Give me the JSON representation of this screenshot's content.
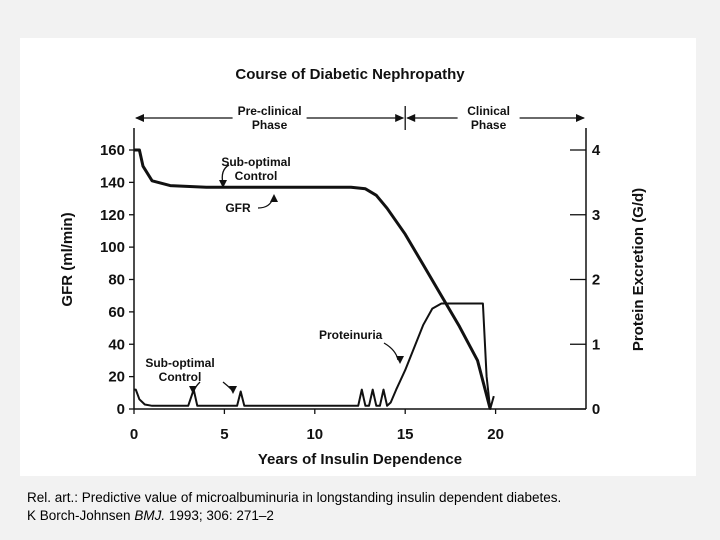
{
  "chart_data": {
    "type": "line",
    "title": "Course of Diabetic Nephropathy",
    "xlabel": "Years of Insulin Dependence",
    "ylabel_left": "GFR (ml/min)",
    "ylabel_right": "Protein Excretion (G/d)",
    "xlim": [
      0,
      25
    ],
    "ylim_left": [
      0,
      160
    ],
    "ylim_right": [
      0,
      4
    ],
    "x_ticks": [
      0,
      5,
      10,
      15,
      20
    ],
    "y_ticks_left": [
      0,
      20,
      40,
      60,
      80,
      100,
      120,
      140,
      160
    ],
    "y_ticks_right": [
      0,
      1,
      2,
      3,
      4
    ],
    "phases": [
      {
        "label_line1": "Pre-clinical",
        "label_line2": "Phase",
        "x_start": 0,
        "x_end": 15
      },
      {
        "label_line1": "Clinical",
        "label_line2": "Phase",
        "x_start": 15,
        "x_end": 24.5
      }
    ],
    "series": [
      {
        "name": "GFR",
        "axis": "left",
        "x": [
          0,
          0.3,
          0.5,
          1,
          2,
          4,
          6,
          8,
          10,
          12,
          12.8,
          13.4,
          14,
          15,
          16,
          17,
          18,
          19,
          19.7
        ],
        "y": [
          160,
          160,
          150,
          141,
          138,
          137,
          137,
          137,
          137,
          137,
          136,
          132,
          124,
          108,
          89,
          70,
          51,
          30,
          0
        ]
      },
      {
        "name": "Proteinuria",
        "axis": "right",
        "x": [
          0,
          0.1,
          0.3,
          0.6,
          1,
          2,
          3,
          3.3,
          3.5,
          3.7,
          4,
          5,
          5.7,
          5.9,
          6.1,
          6.5,
          10,
          12.4,
          12.6,
          12.8,
          13,
          13.2,
          13.4,
          13.6,
          13.8,
          14,
          14.2,
          14.5,
          15,
          16,
          16.5,
          17,
          17.5,
          18.5,
          19.3,
          19.5,
          19.7,
          19.9
        ],
        "y": [
          0.3,
          0.3,
          0.15,
          0.07,
          0.05,
          0.05,
          0.05,
          0.3,
          0.05,
          0.05,
          0.05,
          0.05,
          0.05,
          0.27,
          0.05,
          0.05,
          0.05,
          0.05,
          0.3,
          0.05,
          0.05,
          0.3,
          0.05,
          0.05,
          0.3,
          0.05,
          0.1,
          0.3,
          0.6,
          1.3,
          1.55,
          1.63,
          1.63,
          1.63,
          1.63,
          0.5,
          0,
          0.2
        ]
      }
    ],
    "annotations": [
      {
        "text_line1": "Sub-optimal",
        "text_line2": "Control",
        "target_series": "GFR"
      },
      {
        "text_line1": "GFR",
        "text_line2": "",
        "target_series": "GFR"
      },
      {
        "text_line1": "Proteinuria",
        "text_line2": "",
        "target_series": "Proteinuria"
      },
      {
        "text_line1": "Sub-optimal",
        "text_line2": "Control",
        "target_series": "Proteinuria"
      }
    ],
    "grid": false,
    "legend": "none",
    "line_color": "#111111"
  },
  "caption": {
    "line1": "Rel. art.: Predictive value of microalbuminuria in longstanding insulin dependent diabetes.",
    "line2_prefix": "K Borch-Johnsen ",
    "line2_journal": "BMJ.",
    "line2_suffix": " 1993; 306: 271–2"
  }
}
